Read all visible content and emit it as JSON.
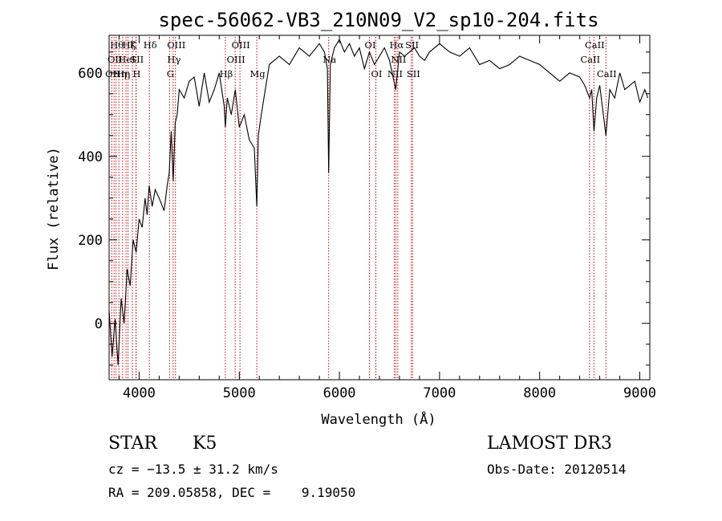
{
  "chart_data": {
    "type": "line",
    "title": "spec-56062-VB3_210N09_V2_sp10-204.fits",
    "xlabel": "Wavelength (Å)",
    "ylabel": "Flux (relative)",
    "xlim": [
      3700,
      9100
    ],
    "ylim": [
      -135,
      690
    ],
    "x_ticks": [
      4000,
      5000,
      6000,
      7000,
      8000,
      9000
    ],
    "x_tick_labels": [
      "4000",
      "5000",
      "6000",
      "7000",
      "8000",
      "9000"
    ],
    "y_ticks": [
      0,
      200,
      400,
      600
    ],
    "y_tick_labels": [
      "0",
      "200",
      "400",
      "600"
    ],
    "series": [
      {
        "name": "flux",
        "x": [
          3700,
          3730,
          3760,
          3790,
          3820,
          3850,
          3880,
          3910,
          3940,
          3970,
          4000,
          4030,
          4060,
          4080,
          4100,
          4130,
          4160,
          4200,
          4250,
          4280,
          4300,
          4320,
          4340,
          4360,
          4380,
          4400,
          4450,
          4500,
          4550,
          4600,
          4650,
          4700,
          4750,
          4800,
          4850,
          4861,
          4880,
          4920,
          4960,
          5000,
          5050,
          5100,
          5150,
          5175,
          5190,
          5220,
          5260,
          5300,
          5400,
          5500,
          5600,
          5700,
          5800,
          5850,
          5880,
          5893,
          5910,
          5950,
          6000,
          6050,
          6100,
          6150,
          6200,
          6250,
          6300,
          6350,
          6400,
          6450,
          6500,
          6563,
          6600,
          6650,
          6700,
          6750,
          6800,
          6850,
          6900,
          7000,
          7100,
          7200,
          7300,
          7400,
          7500,
          7600,
          7700,
          7800,
          7900,
          8000,
          8100,
          8200,
          8300,
          8400,
          8450,
          8498,
          8520,
          8542,
          8570,
          8600,
          8662,
          8700,
          8750,
          8800,
          8850,
          8900,
          8950,
          9000,
          9050,
          9080
        ],
        "values": [
          30,
          -80,
          10,
          -100,
          60,
          0,
          130,
          90,
          200,
          170,
          250,
          230,
          300,
          260,
          330,
          280,
          320,
          300,
          270,
          330,
          360,
          460,
          340,
          480,
          500,
          560,
          540,
          580,
          590,
          520,
          600,
          530,
          560,
          600,
          520,
          470,
          540,
          500,
          560,
          470,
          500,
          440,
          420,
          280,
          450,
          500,
          560,
          620,
          640,
          620,
          660,
          640,
          670,
          650,
          610,
          360,
          620,
          660,
          680,
          650,
          670,
          640,
          660,
          610,
          650,
          620,
          640,
          660,
          630,
          560,
          650,
          640,
          650,
          660,
          640,
          630,
          650,
          670,
          650,
          640,
          660,
          620,
          630,
          610,
          620,
          640,
          630,
          620,
          600,
          580,
          600,
          590,
          570,
          540,
          560,
          460,
          540,
          570,
          450,
          560,
          540,
          600,
          560,
          570,
          580,
          530,
          560,
          540
        ]
      }
    ],
    "lines": [
      {
        "wl": 3727,
        "label": "OII",
        "row": 2
      },
      {
        "wl": 3750,
        "label": "OII",
        "row": 1
      },
      {
        "wl": 3770,
        "label": "Hθ",
        "row": 0
      },
      {
        "wl": 3798,
        "label": "Hη",
        "row": 2
      },
      {
        "wl": 3835,
        "label": "Hη",
        "row": 2
      },
      {
        "wl": 3869,
        "label": "HeI",
        "row": 1
      },
      {
        "wl": 3889,
        "label": "Hζ",
        "row": 0
      },
      {
        "wl": 3933,
        "label": "K",
        "row": 0
      },
      {
        "wl": 3968,
        "label": "H",
        "row": 2
      },
      {
        "wl": 3970,
        "label": "SII",
        "row": 1
      },
      {
        "wl": 4102,
        "label": "Hδ",
        "row": 0
      },
      {
        "wl": 4304,
        "label": "G",
        "row": 2
      },
      {
        "wl": 4340,
        "label": "Hγ",
        "row": 1
      },
      {
        "wl": 4363,
        "label": "OIII",
        "row": 0
      },
      {
        "wl": 4861,
        "label": "Hβ",
        "row": 2
      },
      {
        "wl": 4959,
        "label": "OIII",
        "row": 1
      },
      {
        "wl": 5007,
        "label": "OIII",
        "row": 0
      },
      {
        "wl": 5175,
        "label": "Mg",
        "row": 2
      },
      {
        "wl": 5893,
        "label": "Na",
        "row": 1
      },
      {
        "wl": 6300,
        "label": "OI",
        "row": 0
      },
      {
        "wl": 6364,
        "label": "OI",
        "row": 2
      },
      {
        "wl": 6548,
        "label": "NII",
        "row": 2
      },
      {
        "wl": 6563,
        "label": "Hα",
        "row": 0
      },
      {
        "wl": 6583,
        "label": "NII",
        "row": 1
      },
      {
        "wl": 6717,
        "label": "SII",
        "row": 0
      },
      {
        "wl": 6731,
        "label": "SII",
        "row": 2
      },
      {
        "wl": 8498,
        "label": "CaII",
        "row": 1
      },
      {
        "wl": 8542,
        "label": "CaII",
        "row": 0
      },
      {
        "wl": 8662,
        "label": "CaII",
        "row": 2
      }
    ]
  },
  "info": {
    "object_class": "STAR",
    "subclass": "K5",
    "survey": "LAMOST DR3",
    "redshift": "cz = −13.5 ± 31.2 km/s",
    "obs_date": "Obs-Date: 20120514",
    "coords": "RA = 209.05858, DEC =    9.19050"
  },
  "colors": {
    "line_marker": "#cc0000",
    "spectrum": "#000000",
    "axis": "#000000"
  }
}
